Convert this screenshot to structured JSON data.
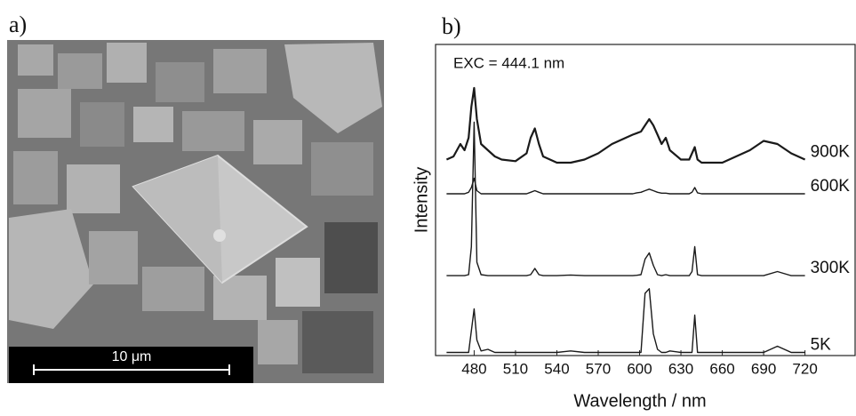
{
  "image_panel": {
    "label": "a)",
    "scale_bar": "10 μm"
  },
  "chart_data": {
    "type": "line",
    "panel_label": "b)",
    "annotation": "EXC = 444.1 nm",
    "x_label": "Wavelength / nm",
    "y_label": "Intensity",
    "x": [
      460,
      465,
      470,
      473,
      476,
      478,
      480,
      482,
      485,
      490,
      495,
      500,
      510,
      518,
      521,
      524,
      527,
      530,
      540,
      550,
      560,
      570,
      580,
      590,
      595,
      598,
      601,
      604,
      607,
      610,
      613,
      616,
      619,
      622,
      630,
      636,
      638,
      640,
      642,
      645,
      660,
      670,
      680,
      690,
      700,
      710,
      720
    ],
    "series": [
      {
        "name": "900K",
        "color": "#1a1a1a",
        "values": [
          63,
          64,
          68,
          66,
          70,
          80,
          86,
          76,
          68,
          66,
          64,
          63,
          62.5,
          65,
          70,
          73,
          68,
          64,
          62,
          62,
          63,
          65,
          68,
          70,
          71,
          71.5,
          72,
          74,
          76,
          74,
          71,
          68,
          70,
          66,
          63,
          63,
          65,
          67,
          63,
          62,
          62,
          64,
          66,
          69,
          68,
          65,
          63
        ]
      },
      {
        "name": "600K",
        "color": "#1a1a1a",
        "values": [
          52,
          52,
          52,
          52,
          52.5,
          54,
          57,
          53,
          52,
          52,
          52,
          52,
          52,
          52,
          52.5,
          53,
          52.5,
          52,
          52,
          52,
          52,
          52,
          52,
          52,
          52,
          52.3,
          52.5,
          53,
          53.5,
          53,
          52.5,
          52.2,
          52.2,
          52,
          52,
          52,
          52.5,
          54,
          52.3,
          52,
          52,
          52,
          52,
          52,
          52,
          52,
          52
        ]
      },
      {
        "name": "300K",
        "color": "#1a1a1a",
        "values": [
          25.7,
          25.7,
          25.7,
          25.7,
          26,
          35,
          75,
          30,
          26,
          25.7,
          25.7,
          25.7,
          25.7,
          25.7,
          26,
          28,
          26,
          25.7,
          25.7,
          25.9,
          25.7,
          25.7,
          25.7,
          25.7,
          25.7,
          25.8,
          26,
          31,
          33,
          29,
          26,
          25.7,
          26,
          25.7,
          25.7,
          25.7,
          27,
          35,
          26,
          25.7,
          25.7,
          25.7,
          25.7,
          25.7,
          27,
          25.7,
          25.7
        ]
      },
      {
        "name": "5K",
        "color": "#1a1a1a",
        "values": [
          1,
          1,
          1,
          1,
          1,
          8,
          15,
          5,
          1.5,
          2,
          1,
          1,
          1,
          1,
          1,
          1,
          1,
          1,
          1,
          1.5,
          1,
          1,
          1,
          1,
          1,
          1,
          1,
          20,
          21.5,
          7,
          2,
          1,
          1,
          1.5,
          1,
          1,
          1,
          13,
          1,
          1,
          1,
          1,
          1,
          1,
          3,
          1,
          1
        ]
      }
    ],
    "xlim": [
      452,
      757
    ],
    "ylim": [
      0,
      100
    ],
    "xticks": [
      480,
      510,
      540,
      570,
      600,
      630,
      660,
      690,
      720
    ]
  }
}
